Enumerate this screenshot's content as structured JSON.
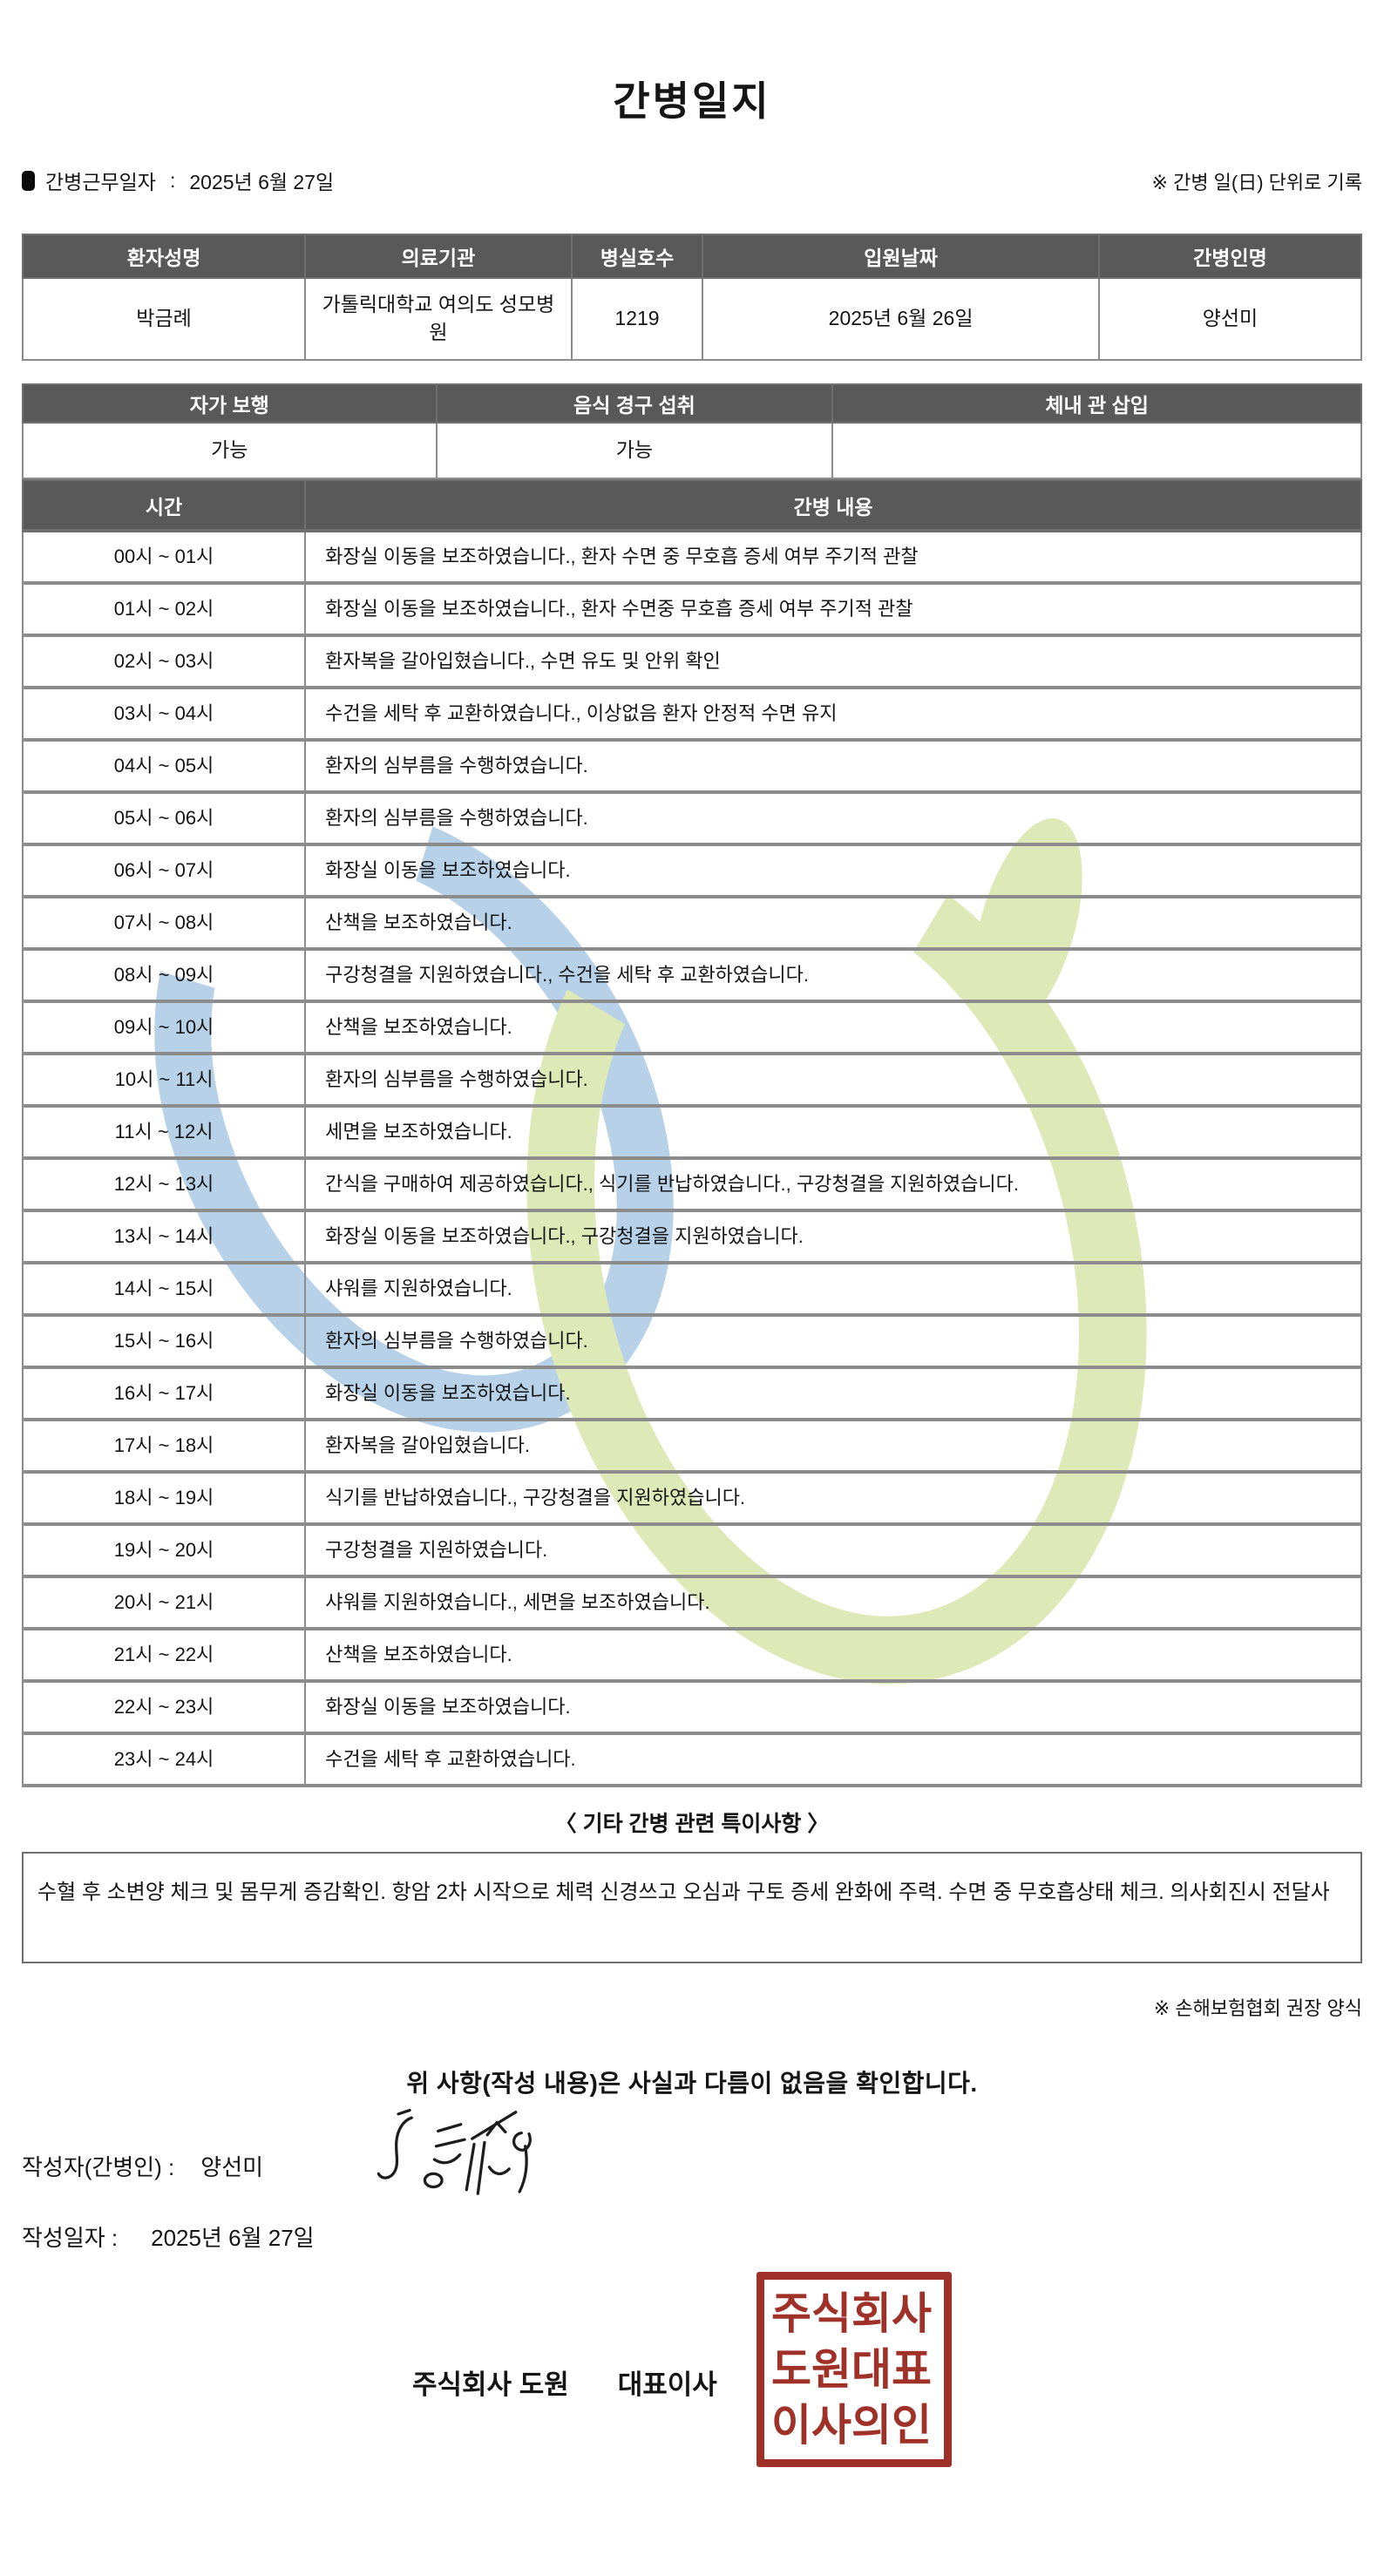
{
  "title": "간병일지",
  "meta": {
    "bullet_icon": "filled-square",
    "work_date_label": "간병근무일자",
    "separator": ":",
    "work_date": "2025년 6월 27일",
    "unit_note": "※ 간병 일(日) 단위로 기록"
  },
  "patient_table": {
    "headers": [
      "환자성명",
      "의료기관",
      "병실호수",
      "입원날짜",
      "간병인명"
    ],
    "values": [
      "박금례",
      "가톨릭대학교 여의도 성모병원",
      "1219",
      "2025년 6월 26일",
      "양선미"
    ]
  },
  "status_table": {
    "headers": [
      "자가 보행",
      "음식 경구 섭취",
      "체내 관 삽입"
    ],
    "values": [
      "가능",
      "가능",
      ""
    ]
  },
  "care_table": {
    "time_header": "시간",
    "content_header": "간병 내용",
    "rows": [
      {
        "time": "00시 ~ 01시",
        "content": "화장실 이동을 보조하였습니다., 환자 수면 중 무호흡 증세 여부 주기적 관찰"
      },
      {
        "time": "01시 ~ 02시",
        "content": "화장실 이동을 보조하였습니다., 환자 수면중 무호흡 증세 여부 주기적 관찰"
      },
      {
        "time": "02시 ~ 03시",
        "content": "환자복을 갈아입혔습니다., 수면 유도 및 안위 확인"
      },
      {
        "time": "03시 ~ 04시",
        "content": "수건을 세탁 후 교환하였습니다., 이상없음 환자 안정적 수면 유지"
      },
      {
        "time": "04시 ~ 05시",
        "content": "환자의 심부름을 수행하였습니다."
      },
      {
        "time": "05시 ~ 06시",
        "content": "환자의 심부름을 수행하였습니다."
      },
      {
        "time": "06시 ~ 07시",
        "content": "화장실 이동을 보조하였습니다."
      },
      {
        "time": "07시 ~ 08시",
        "content": "산책을 보조하였습니다."
      },
      {
        "time": "08시 ~ 09시",
        "content": "구강청결을 지원하였습니다., 수건을 세탁 후 교환하였습니다."
      },
      {
        "time": "09시 ~ 10시",
        "content": "산책을 보조하였습니다."
      },
      {
        "time": "10시 ~ 11시",
        "content": "환자의 심부름을 수행하였습니다."
      },
      {
        "time": "11시 ~ 12시",
        "content": "세면을 보조하였습니다."
      },
      {
        "time": "12시 ~ 13시",
        "content": "간식을 구매하여 제공하였습니다., 식기를 반납하였습니다., 구강청결을 지원하였습니다."
      },
      {
        "time": "13시 ~ 14시",
        "content": "화장실 이동을 보조하였습니다., 구강청결을 지원하였습니다."
      },
      {
        "time": "14시 ~ 15시",
        "content": "샤워를 지원하였습니다."
      },
      {
        "time": "15시 ~ 16시",
        "content": "환자의 심부름을 수행하였습니다."
      },
      {
        "time": "16시 ~ 17시",
        "content": "화장실 이동을 보조하였습니다."
      },
      {
        "time": "17시 ~ 18시",
        "content": "환자복을 갈아입혔습니다."
      },
      {
        "time": "18시 ~ 19시",
        "content": "식기를 반납하였습니다., 구강청결을 지원하였습니다."
      },
      {
        "time": "19시 ~ 20시",
        "content": "구강청결을 지원하였습니다."
      },
      {
        "time": "20시 ~ 21시",
        "content": "샤워를 지원하였습니다., 세면을 보조하였습니다."
      },
      {
        "time": "21시 ~ 22시",
        "content": "산책을 보조하였습니다."
      },
      {
        "time": "22시 ~ 23시",
        "content": "화장실 이동을 보조하였습니다."
      },
      {
        "time": "23시 ~ 24시",
        "content": "수건을 세탁 후 교환하였습니다."
      }
    ]
  },
  "notes": {
    "heading": "〈 기타 간병 관련 특이사항 〉",
    "content": "수혈 후 소변양 체크 및 몸무게 증감확인. 항암 2차 시작으로 체력 신경쓰고 오심과 구토 증세 완화에 주력. 수면 중 무호흡상태 체크. 의사회진시 전달사"
  },
  "footer": {
    "form_note": "※ 손해보험협회 권장 양식",
    "confirmation": "위 사항(작성 내용)은 사실과 다름이 없음을 확인합니다.",
    "writer_label": "작성자(간병인) :",
    "writer_name": "양선미",
    "date_label": "작성일자 :",
    "date_value": "2025년 6월 27일",
    "company_name": "주식회사 도원",
    "company_role": "대표이사",
    "stamp_lines": [
      "주식회사",
      "도원대표",
      "이사의인"
    ]
  },
  "colors": {
    "header_bg": "#595959",
    "table_border": "#8c8c8c",
    "stamp_red": "#a03129",
    "watermark_blue": "#b7d1e8",
    "watermark_green": "#dde9b6"
  }
}
